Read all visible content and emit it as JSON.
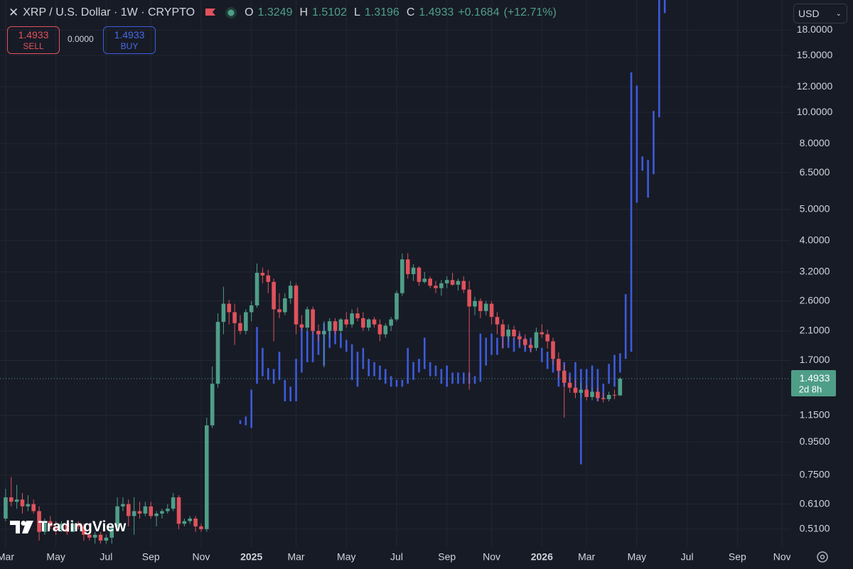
{
  "chart_data": {
    "type": "candlestick",
    "title": "XRP / U.S. Dollar · 1W · CRYPTO",
    "ohlc_labels": [
      "O",
      "H",
      "L",
      "C"
    ],
    "change_label": "+0.1684",
    "change_percent_label": "(+12.71%)",
    "countdown": "2d 8h",
    "log_scale": true,
    "grid": true,
    "up_color": "#4f9e88",
    "down_color": "#e0525c",
    "categories": [
      "Mar",
      null,
      null,
      null,
      null,
      null,
      null,
      null,
      null,
      "May",
      null,
      null,
      null,
      null,
      null,
      null,
      null,
      null,
      "Jul",
      null,
      null,
      null,
      null,
      null,
      null,
      null,
      "Sep",
      null,
      null,
      null,
      null,
      null,
      null,
      null,
      null,
      "Nov",
      null,
      null,
      null,
      null,
      null,
      null,
      null,
      null,
      "2025",
      null,
      null,
      null,
      null,
      null,
      null,
      null,
      "Mar",
      null,
      null,
      null,
      null,
      null,
      null,
      null,
      null,
      "May",
      null,
      null,
      null,
      null,
      null,
      null,
      null,
      null,
      "Jul",
      null,
      null,
      null,
      null,
      null,
      null,
      null,
      null,
      "Sep",
      null,
      null,
      null,
      null,
      null,
      null,
      null,
      "Nov",
      null,
      null,
      null,
      null,
      null,
      null,
      null,
      null,
      "2026",
      null,
      null,
      null,
      null,
      null,
      null,
      null,
      "Mar",
      null,
      null,
      null,
      null,
      null,
      null,
      null,
      null,
      "May",
      null,
      null,
      null,
      null,
      null,
      null,
      null,
      null,
      "Jul",
      null,
      null,
      null,
      null,
      null,
      null,
      null,
      null,
      "Sep",
      null,
      null,
      null,
      null,
      null,
      null,
      null,
      "Nov",
      null
    ],
    "open": [
      0.55,
      0.64,
      0.62,
      0.63,
      0.6,
      0.61,
      0.58,
      0.5,
      0.54,
      0.52,
      0.51,
      0.53,
      0.5,
      0.53,
      0.52,
      0.49,
      0.48,
      0.49,
      0.47,
      0.48,
      0.52,
      0.6,
      0.61,
      0.56,
      0.58,
      0.57,
      0.6,
      0.56,
      0.57,
      0.58,
      0.59,
      0.64,
      0.53,
      0.54,
      0.55,
      0.52,
      0.51,
      1.07,
      1.44,
      2.24,
      2.55,
      2.4,
      2.22,
      2.1,
      2.4,
      2.52,
      3.18,
      3.12,
      2.98,
      2.45,
      2.4,
      2.65,
      2.9,
      2.2,
      2.15,
      2.45,
      2.1,
      2.05,
      2.1,
      2.25,
      2.1,
      2.28,
      2.2,
      2.38,
      2.3,
      2.15,
      2.28,
      2.2,
      2.05,
      2.18,
      2.28,
      2.75,
      3.5,
      3.15,
      3.3,
      2.98,
      3.05,
      2.9,
      2.85,
      2.95,
      3.02,
      2.92,
      3.0,
      2.82,
      2.5,
      2.6,
      2.42,
      2.55,
      2.32,
      2.2,
      2.02,
      2.12,
      2.02,
      1.98,
      1.9,
      1.86,
      2.08,
      2.05,
      1.95,
      1.72,
      1.58,
      1.45,
      1.4,
      1.35,
      1.38,
      1.31,
      1.36,
      1.3,
      1.29,
      1.33,
      1.3249,
      null,
      null,
      null,
      null,
      null,
      null,
      null,
      null,
      null,
      null,
      null,
      null,
      null,
      null,
      null,
      null,
      null,
      null,
      null,
      null,
      null,
      null,
      null,
      null,
      null,
      null,
      null,
      null,
      null,
      null
    ],
    "high": [
      0.68,
      0.74,
      0.7,
      0.66,
      0.65,
      0.63,
      0.6,
      0.55,
      0.56,
      0.54,
      0.54,
      0.54,
      0.54,
      0.54,
      0.53,
      0.5,
      0.5,
      0.5,
      0.49,
      0.53,
      0.64,
      0.64,
      0.63,
      0.64,
      0.62,
      0.62,
      0.62,
      0.58,
      0.59,
      0.61,
      0.66,
      0.65,
      0.55,
      0.56,
      0.56,
      0.53,
      1.13,
      1.63,
      2.38,
      2.88,
      2.62,
      2.55,
      2.35,
      2.45,
      2.6,
      3.4,
      3.3,
      3.25,
      3.05,
      2.75,
      2.75,
      3.0,
      2.95,
      2.35,
      2.5,
      2.5,
      2.2,
      2.25,
      2.3,
      2.3,
      2.3,
      2.4,
      2.45,
      2.48,
      2.4,
      2.3,
      2.32,
      2.28,
      2.22,
      2.32,
      2.8,
      3.65,
      3.66,
      3.38,
      3.33,
      3.2,
      3.1,
      3.0,
      3.02,
      3.1,
      3.18,
      3.05,
      3.1,
      3.0,
      2.68,
      2.65,
      2.6,
      2.6,
      2.4,
      2.28,
      2.2,
      2.18,
      2.1,
      2.05,
      1.98,
      2.15,
      2.2,
      2.12,
      2.0,
      1.8,
      1.65,
      1.52,
      1.48,
      1.45,
      1.42,
      1.4,
      1.4,
      1.35,
      1.36,
      1.38,
      1.5102,
      null,
      null,
      null,
      null,
      null,
      null,
      null,
      null,
      null,
      null,
      null,
      null,
      null,
      null,
      null,
      null,
      null,
      null,
      null,
      null,
      null,
      null,
      null,
      null,
      null,
      null,
      null,
      null,
      null,
      null
    ],
    "low": [
      0.54,
      0.6,
      0.59,
      0.57,
      0.58,
      0.57,
      0.47,
      0.49,
      0.51,
      0.49,
      0.5,
      0.49,
      0.5,
      0.51,
      0.47,
      0.47,
      0.46,
      0.46,
      0.46,
      0.46,
      0.51,
      0.58,
      0.52,
      0.49,
      0.55,
      0.56,
      0.55,
      0.52,
      0.55,
      0.57,
      0.58,
      0.51,
      0.52,
      0.53,
      0.5,
      0.5,
      0.5,
      1.05,
      1.4,
      2.05,
      2.2,
      1.9,
      2.05,
      2.05,
      2.25,
      2.48,
      2.95,
      2.75,
      1.95,
      2.3,
      2.35,
      2.55,
      2.05,
      2.1,
      2.1,
      2.05,
      1.95,
      1.62,
      2.0,
      2.05,
      2.05,
      2.15,
      2.15,
      2.25,
      2.1,
      2.1,
      2.15,
      1.95,
      2.0,
      2.1,
      2.25,
      2.7,
      3.05,
      3.0,
      2.9,
      2.95,
      2.85,
      2.75,
      2.7,
      2.85,
      2.9,
      2.8,
      2.75,
      1.38,
      2.35,
      2.3,
      2.35,
      2.2,
      2.05,
      1.85,
      1.95,
      1.98,
      1.9,
      1.85,
      1.8,
      1.82,
      2.0,
      1.85,
      1.65,
      1.5,
      1.13,
      1.35,
      1.3,
      1.3,
      1.28,
      1.28,
      1.27,
      1.26,
      1.27,
      1.29,
      1.3196,
      null,
      null,
      null,
      null,
      null,
      null,
      null,
      null,
      null,
      null,
      null,
      null,
      null,
      null,
      null,
      null,
      null,
      null,
      null,
      null,
      null,
      null,
      null,
      null,
      null,
      null,
      null,
      null,
      null,
      null
    ],
    "close": [
      0.64,
      0.62,
      0.63,
      0.6,
      0.61,
      0.58,
      0.5,
      0.54,
      0.52,
      0.51,
      0.53,
      0.5,
      0.53,
      0.52,
      0.49,
      0.48,
      0.49,
      0.47,
      0.48,
      0.52,
      0.6,
      0.61,
      0.56,
      0.58,
      0.57,
      0.6,
      0.56,
      0.57,
      0.58,
      0.59,
      0.64,
      0.53,
      0.54,
      0.55,
      0.52,
      0.51,
      1.07,
      1.44,
      2.24,
      2.55,
      2.4,
      2.22,
      2.1,
      2.4,
      2.52,
      3.18,
      3.12,
      2.98,
      2.45,
      2.4,
      2.65,
      2.9,
      2.2,
      2.15,
      2.45,
      2.1,
      2.05,
      2.1,
      2.25,
      2.1,
      2.28,
      2.2,
      2.38,
      2.3,
      2.15,
      2.28,
      2.2,
      2.05,
      2.18,
      2.28,
      2.75,
      3.5,
      3.15,
      3.3,
      2.98,
      3.05,
      2.9,
      2.85,
      2.95,
      3.02,
      2.92,
      3.0,
      2.82,
      2.5,
      2.6,
      2.42,
      2.55,
      2.32,
      2.2,
      2.02,
      2.12,
      2.02,
      1.98,
      1.9,
      1.86,
      2.08,
      2.05,
      1.95,
      1.72,
      1.58,
      1.45,
      1.4,
      1.35,
      1.38,
      1.31,
      1.36,
      1.3,
      1.29,
      1.33,
      1.3249,
      1.4933,
      null,
      null,
      null,
      null,
      null,
      null,
      null,
      null,
      null,
      null,
      null,
      null,
      null,
      null,
      null,
      null,
      null,
      null,
      null,
      null,
      null,
      null,
      null,
      null,
      null,
      null,
      null,
      null,
      null,
      null
    ],
    "overlay": {
      "color": "#3d5bdb",
      "low": [
        null,
        null,
        null,
        null,
        null,
        null,
        null,
        null,
        null,
        null,
        null,
        null,
        null,
        null,
        null,
        null,
        null,
        null,
        null,
        null,
        null,
        null,
        null,
        null,
        null,
        null,
        null,
        null,
        null,
        null,
        null,
        null,
        null,
        null,
        null,
        null,
        null,
        null,
        null,
        null,
        null,
        null,
        1.08,
        1.07,
        1.05,
        1.44,
        1.52,
        1.48,
        1.44,
        1.48,
        1.27,
        1.27,
        1.27,
        1.56,
        1.68,
        1.68,
        1.77,
        1.64,
        1.86,
        1.91,
        1.86,
        1.81,
        1.48,
        1.41,
        1.6,
        1.52,
        1.52,
        1.48,
        1.44,
        1.41,
        1.41,
        1.41,
        1.44,
        1.48,
        1.56,
        1.6,
        1.52,
        1.52,
        1.44,
        1.41,
        1.44,
        1.44,
        1.44,
        1.44,
        1.44,
        1.46,
        1.64,
        1.77,
        1.77,
        1.86,
        1.86,
        1.81,
        1.86,
        1.81,
        1.81,
        1.86,
        1.68,
        1.6,
        1.56,
        1.41,
        1.41,
        1.41,
        1.37,
        0.81,
        1.37,
        1.34,
        1.27,
        1.3,
        1.44,
        1.41,
        1.56,
        1.72,
        1.81,
        5.25,
        6.59,
        5.44,
        6.43,
        9.65,
        20.3,
        null,
        null,
        null,
        null,
        null,
        null,
        null,
        null,
        null,
        null,
        null,
        null,
        null,
        null,
        null,
        null,
        null,
        null,
        null,
        null,
        null,
        null
      ],
      "high": [
        null,
        null,
        null,
        null,
        null,
        null,
        null,
        null,
        null,
        null,
        null,
        null,
        null,
        null,
        null,
        null,
        null,
        null,
        null,
        null,
        null,
        null,
        null,
        null,
        null,
        null,
        null,
        null,
        null,
        null,
        null,
        null,
        null,
        null,
        null,
        null,
        null,
        null,
        null,
        null,
        null,
        null,
        1.11,
        1.14,
        1.38,
        2.16,
        1.86,
        1.61,
        1.6,
        1.81,
        1.48,
        1.41,
        1.72,
        2.16,
        2.1,
        2.1,
        2.1,
        2.22,
        2.1,
        2.1,
        2.06,
        1.97,
        1.91,
        1.81,
        1.86,
        1.72,
        1.68,
        1.64,
        1.6,
        1.52,
        1.48,
        1.48,
        1.86,
        1.68,
        1.72,
        2.0,
        1.68,
        1.64,
        1.6,
        1.64,
        1.56,
        1.56,
        1.56,
        1.56,
        1.52,
        2.06,
        2.0,
        2.06,
        2.0,
        2.16,
        2.06,
        2.0,
        2.06,
        2.0,
        2.0,
        2.06,
        1.86,
        1.81,
        1.81,
        1.68,
        1.68,
        1.56,
        1.68,
        1.6,
        1.6,
        1.64,
        1.6,
        1.44,
        1.66,
        1.77,
        1.79,
        2.73,
        13.3,
        12.1,
        7.3,
        7.12,
        10.1,
        24,
        26,
        null,
        null,
        null,
        null,
        null,
        null,
        null,
        null,
        null,
        null,
        null,
        null,
        null,
        null,
        null,
        null,
        null,
        null,
        null,
        null,
        null,
        null
      ]
    },
    "ylim": [
      0.449,
      22.3
    ],
    "yticks": [
      {
        "value": 18,
        "label": "18.0000"
      },
      {
        "value": 15,
        "label": "15.0000"
      },
      {
        "value": 12,
        "label": "12.0000"
      },
      {
        "value": 10,
        "label": "10.0000"
      },
      {
        "value": 8,
        "label": "8.0000"
      },
      {
        "value": 6.5,
        "label": "6.5000"
      },
      {
        "value": 5,
        "label": "5.0000"
      },
      {
        "value": 4,
        "label": "4.0000"
      },
      {
        "value": 3.2,
        "label": "3.2000"
      },
      {
        "value": 2.6,
        "label": "2.6000"
      },
      {
        "value": 2.1,
        "label": "2.1000"
      },
      {
        "value": 1.7,
        "label": "1.7000"
      },
      {
        "value": 1.15,
        "label": "1.1500"
      },
      {
        "value": 0.95,
        "label": "0.9500"
      },
      {
        "value": 0.75,
        "label": "0.7500"
      },
      {
        "value": 0.61,
        "label": "0.6100"
      },
      {
        "value": 0.51,
        "label": "0.5100"
      }
    ]
  },
  "trade_panel": {
    "sell_price": "1.4933",
    "sell_label": "SELL",
    "spread": "0.0000",
    "buy_price": "1.4933",
    "buy_label": "BUY"
  },
  "currency": "USD",
  "branding": "TradingView"
}
